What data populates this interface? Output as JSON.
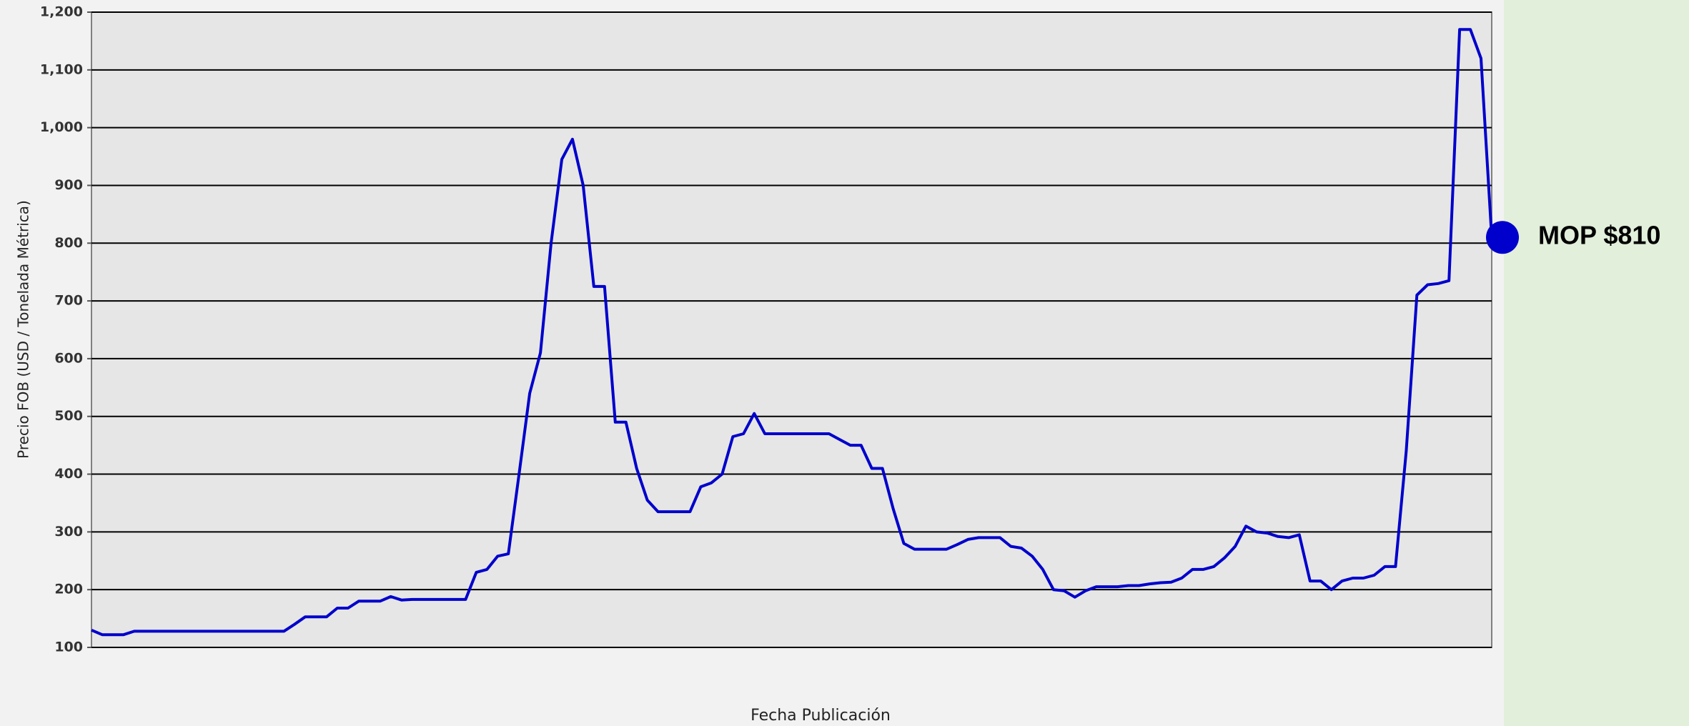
{
  "chart_data": {
    "type": "line",
    "y_label": "Precio FOB (USD / Tonelada Métrica)",
    "x_label": "Fecha Publicación",
    "annotation": "MOP $810",
    "series": [
      {
        "name": "MOP",
        "color": "#0000cc",
        "values": [
          130,
          122,
          122,
          122,
          128,
          128,
          128,
          128,
          128,
          128,
          128,
          128,
          128,
          128,
          128,
          128,
          128,
          128,
          128,
          140,
          153,
          153,
          153,
          168,
          168,
          180,
          180,
          180,
          188,
          182,
          183,
          183,
          183,
          183,
          183,
          183,
          230,
          235,
          258,
          262,
          400,
          540,
          610,
          800,
          945,
          980,
          900,
          725,
          725,
          490,
          490,
          410,
          355,
          335,
          335,
          335,
          335,
          378,
          385,
          400,
          465,
          470,
          505,
          470,
          470,
          470,
          470,
          470,
          470,
          470,
          460,
          450,
          450,
          410,
          410,
          340,
          280,
          270,
          270,
          270,
          270,
          278,
          287,
          290,
          290,
          290,
          275,
          272,
          258,
          235,
          200,
          198,
          187,
          198,
          205,
          205,
          205,
          207,
          207,
          210,
          212,
          213,
          220,
          235,
          235,
          240,
          255,
          275,
          310,
          300,
          298,
          292,
          290,
          295,
          215,
          215,
          200,
          215,
          220,
          220,
          225,
          240,
          240,
          440,
          710,
          728,
          730,
          735,
          1170,
          1170,
          1120,
          810
        ]
      }
    ],
    "ylim": [
      100,
      1200
    ],
    "yticks": [
      100,
      200,
      300,
      400,
      500,
      600,
      700,
      800,
      900,
      {
        "value": 1000,
        "label": "1,000"
      },
      {
        "value": 1100,
        "label": "1,100"
      },
      {
        "value": 1200,
        "label": "1,200"
      }
    ],
    "grid": true
  }
}
